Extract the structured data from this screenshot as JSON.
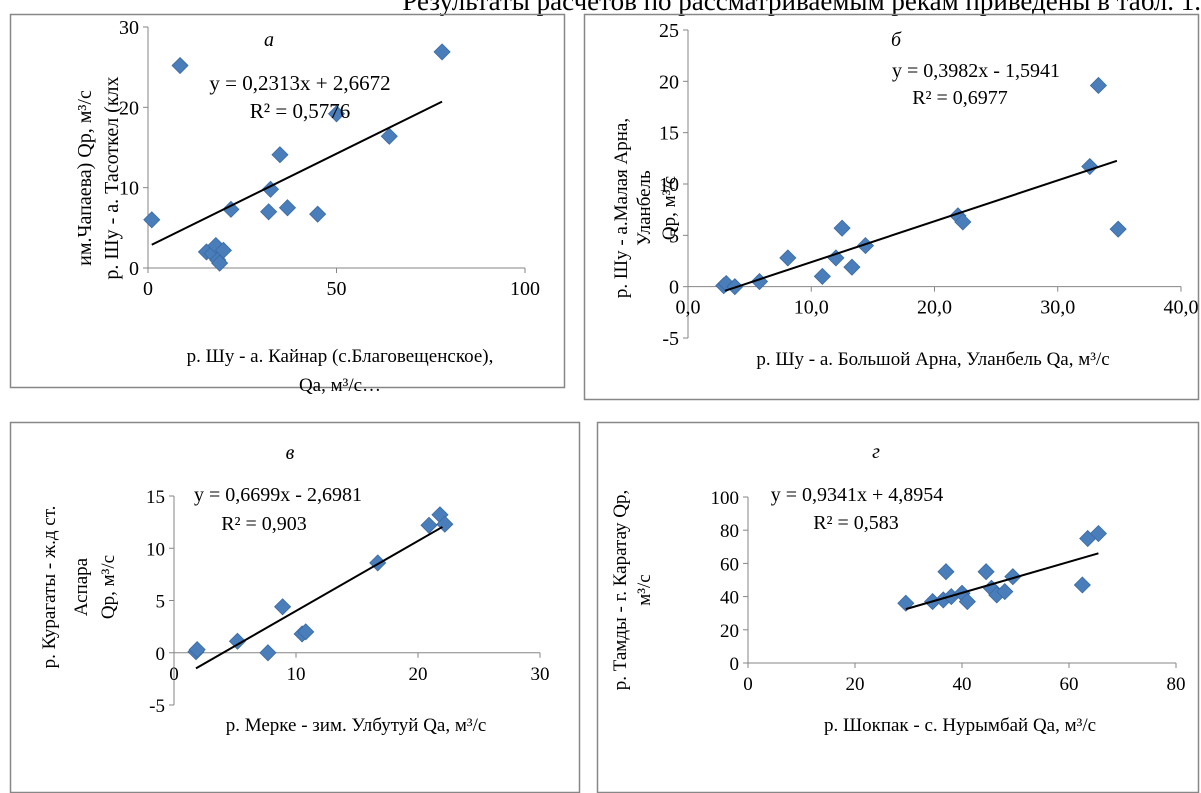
{
  "page": {
    "header_text": "Результаты расчетов по рассматриваемым рекам приведены в табл. 1."
  },
  "chart_data": [
    {
      "type": "scatter",
      "panel_label": "а",
      "xlabel_lines": [
        "р. Шу - а. Кайнар (с.Благовещенское),",
        "Qa, м³/с…"
      ],
      "ylabel_lines": [
        "р. Шу - а. Тасоткел (клх",
        "им.Чапаева)  Qp, м³/с"
      ],
      "equation": "y = 0,2313x + 2,6672",
      "r2": "R² = 0,5776",
      "xlim": [
        0,
        100
      ],
      "ylim": [
        0,
        30
      ],
      "xticks": [
        0,
        50,
        100
      ],
      "xtick_labels": [
        "0",
        "50",
        "100"
      ],
      "yticks": [
        0,
        10,
        20,
        30
      ],
      "ytick_labels": [
        "0",
        "10",
        "20",
        "30"
      ],
      "trendline": {
        "slope": 0.2313,
        "intercept": 2.6672,
        "x_range": [
          1,
          78
        ]
      },
      "points": [
        {
          "x": 1,
          "y": 6.0
        },
        {
          "x": 8.5,
          "y": 25.2
        },
        {
          "x": 15.5,
          "y": 2.0
        },
        {
          "x": 17,
          "y": 1.8
        },
        {
          "x": 18,
          "y": 2.8
        },
        {
          "x": 18.5,
          "y": 1.0
        },
        {
          "x": 19,
          "y": 0.6
        },
        {
          "x": 20,
          "y": 2.2
        },
        {
          "x": 22,
          "y": 7.3
        },
        {
          "x": 32,
          "y": 7.0
        },
        {
          "x": 32.5,
          "y": 9.8
        },
        {
          "x": 35,
          "y": 14.1
        },
        {
          "x": 37,
          "y": 7.5
        },
        {
          "x": 45,
          "y": 6.7
        },
        {
          "x": 50,
          "y": 19.2
        },
        {
          "x": 64,
          "y": 16.4
        },
        {
          "x": 78,
          "y": 26.9
        }
      ],
      "grid": false,
      "legend": "none"
    },
    {
      "type": "scatter",
      "panel_label": "б",
      "xlabel_lines": [
        "р. Шу - а. Большой Арна, Уланбель Qa, м³/с"
      ],
      "ylabel_lines": [
        "р. Шу - а.Малая Арна,",
        "Уланбель",
        "Qр, м³/с"
      ],
      "equation": "y = 0,3982x - 1,5941",
      "r2": "R² = 0,6977",
      "xlim": [
        0,
        40
      ],
      "ylim": [
        -5,
        25
      ],
      "xticks": [
        0,
        10,
        20,
        30,
        40
      ],
      "xtick_labels": [
        "0,0",
        "10,0",
        "20,0",
        "30,0",
        "40,0"
      ],
      "yticks": [
        -5,
        0,
        5,
        10,
        15,
        20,
        25
      ],
      "ytick_labels": [
        "-5",
        "0",
        "5",
        "10",
        "15",
        "20",
        "25"
      ],
      "trendline": {
        "slope": 0.3982,
        "intercept": -1.5941,
        "x_range": [
          3,
          34.8
        ]
      },
      "points": [
        {
          "x": 2.9,
          "y": 0.1
        },
        {
          "x": 3.1,
          "y": 0.3
        },
        {
          "x": 3.8,
          "y": 0.0
        },
        {
          "x": 5.8,
          "y": 0.5
        },
        {
          "x": 8.1,
          "y": 2.8
        },
        {
          "x": 10.9,
          "y": 1.0
        },
        {
          "x": 12.0,
          "y": 2.8
        },
        {
          "x": 12.5,
          "y": 5.7
        },
        {
          "x": 13.3,
          "y": 1.9
        },
        {
          "x": 14.4,
          "y": 4.0
        },
        {
          "x": 21.9,
          "y": 6.9
        },
        {
          "x": 22.3,
          "y": 6.3
        },
        {
          "x": 32.6,
          "y": 11.7
        },
        {
          "x": 33.3,
          "y": 19.6
        },
        {
          "x": 34.9,
          "y": 5.6
        }
      ],
      "grid": false,
      "legend": "none"
    },
    {
      "type": "scatter",
      "panel_label": "в",
      "xlabel_lines": [
        "р. Мерке - зим. Улбутуй  Qa, м³/с"
      ],
      "ylabel_lines": [
        "р. Курагаты - ж.д ст.",
        "Аспара",
        "Qр, м³/с"
      ],
      "equation": "y = 0,6699x - 2,6981",
      "r2": "R² = 0,903",
      "xlim": [
        0,
        30
      ],
      "ylim": [
        -5,
        15
      ],
      "xticks": [
        0,
        10,
        20,
        30
      ],
      "xtick_labels": [
        "0",
        "10",
        "20",
        "30"
      ],
      "yticks": [
        -5,
        0,
        5,
        10,
        15
      ],
      "ytick_labels": [
        "-5",
        "0",
        "5",
        "10",
        "15"
      ],
      "trendline": {
        "slope": 0.6699,
        "intercept": -2.6981,
        "x_range": [
          1.8,
          22
        ]
      },
      "points": [
        {
          "x": 1.8,
          "y": 0.1
        },
        {
          "x": 1.9,
          "y": 0.3
        },
        {
          "x": 5.2,
          "y": 1.1
        },
        {
          "x": 7.7,
          "y": 0.0
        },
        {
          "x": 8.9,
          "y": 4.4
        },
        {
          "x": 10.5,
          "y": 1.8
        },
        {
          "x": 10.8,
          "y": 2.0
        },
        {
          "x": 16.7,
          "y": 8.6
        },
        {
          "x": 20.9,
          "y": 12.2
        },
        {
          "x": 21.8,
          "y": 13.2
        },
        {
          "x": 22.2,
          "y": 12.3
        }
      ],
      "grid": false,
      "legend": "none"
    },
    {
      "type": "scatter",
      "panel_label": "г",
      "xlabel_lines": [
        "р. Шокпак - с. Нурымбай Qa, м³/с"
      ],
      "ylabel_lines": [
        "р. Тамды - г. Каратау Qр,",
        "м³/с"
      ],
      "equation": "y = 0,9341x + 4,8954",
      "r2": "R² = 0,583",
      "xlim": [
        0,
        80
      ],
      "ylim": [
        0,
        100
      ],
      "xticks": [
        0,
        20,
        40,
        60,
        80
      ],
      "xtick_labels": [
        "0",
        "20",
        "40",
        "60",
        "80"
      ],
      "yticks": [
        0,
        20,
        40,
        60,
        80,
        100
      ],
      "ytick_labels": [
        "0",
        "20",
        "40",
        "60",
        "80",
        "100"
      ],
      "trendline": {
        "slope": 0.9341,
        "intercept": 4.8954,
        "x_range": [
          29.5,
          65.5
        ]
      },
      "points": [
        {
          "x": 29.5,
          "y": 36
        },
        {
          "x": 34.5,
          "y": 37
        },
        {
          "x": 36.5,
          "y": 38
        },
        {
          "x": 37,
          "y": 55
        },
        {
          "x": 38,
          "y": 40
        },
        {
          "x": 40,
          "y": 42
        },
        {
          "x": 41,
          "y": 37
        },
        {
          "x": 44.5,
          "y": 55
        },
        {
          "x": 45.5,
          "y": 45
        },
        {
          "x": 46.5,
          "y": 41
        },
        {
          "x": 48,
          "y": 43
        },
        {
          "x": 49.5,
          "y": 52
        },
        {
          "x": 62.5,
          "y": 47
        },
        {
          "x": 63.5,
          "y": 75
        },
        {
          "x": 65.5,
          "y": 78
        }
      ],
      "grid": false,
      "legend": "none"
    }
  ],
  "colors": {
    "marker": "#4a7ebb",
    "marker_stroke": "#3a6aa3",
    "trendline": "#000000",
    "axis": "#868686",
    "panel_border": "#878787"
  }
}
